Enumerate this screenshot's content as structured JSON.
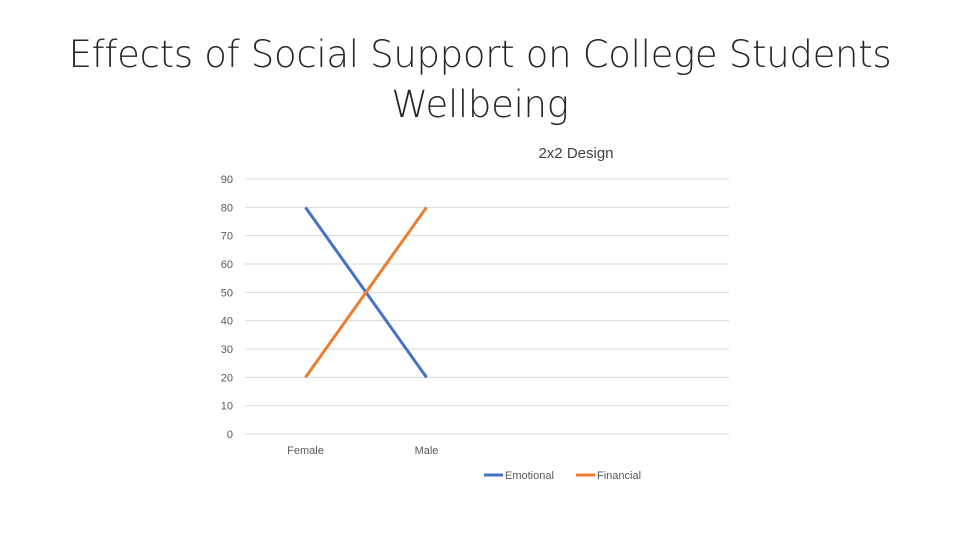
{
  "slide": {
    "title_line1": "Effects of Social Support on College Students",
    "title_line2": "Wellbeing"
  },
  "chart_data": {
    "type": "line",
    "title": "2x2 Design",
    "xlabel": "",
    "ylabel": "",
    "categories": [
      "Female",
      "Male"
    ],
    "ylim": [
      0,
      90
    ],
    "yticks": [
      0,
      10,
      20,
      30,
      40,
      50,
      60,
      70,
      80,
      90
    ],
    "grid": true,
    "legend_position": "bottom",
    "series": [
      {
        "name": "Emotional",
        "values": [
          80,
          20
        ],
        "color": "#4472C4"
      },
      {
        "name": "Financial",
        "values": [
          20,
          80
        ],
        "color": "#ED7D31"
      }
    ],
    "gridline_color": "#D9D9D9"
  }
}
